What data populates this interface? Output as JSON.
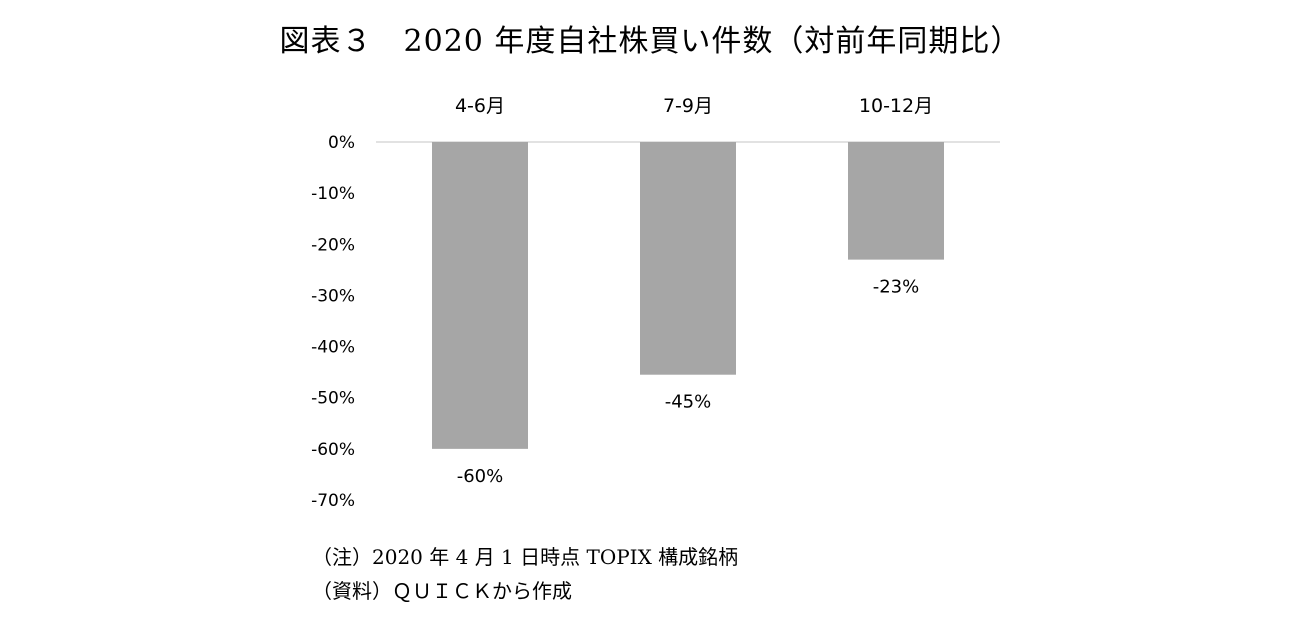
{
  "title": "図表３　2020 年度自社株買い件数（対前年同期比）",
  "chart_data": {
    "type": "bar",
    "categories": [
      "4-6月",
      "7-9月",
      "10-12月"
    ],
    "values": [
      -60,
      -45.5,
      -23
    ],
    "data_labels": [
      "-60%",
      "-45%",
      "-23%"
    ],
    "y_ticks": [
      "0%",
      "-10%",
      "-20%",
      "-30%",
      "-40%",
      "-50%",
      "-60%",
      "-70%"
    ],
    "ylim": [
      -70,
      0
    ],
    "grid": false,
    "legend": "none",
    "bar_color": "#a6a6a6",
    "axis_color": "#d9d9d9"
  },
  "notes": {
    "note": "（注）2020 年 4 月 1 日時点 TOPIX 構成銘柄",
    "source": "（資料）ＱＵＩＣＫから作成"
  }
}
